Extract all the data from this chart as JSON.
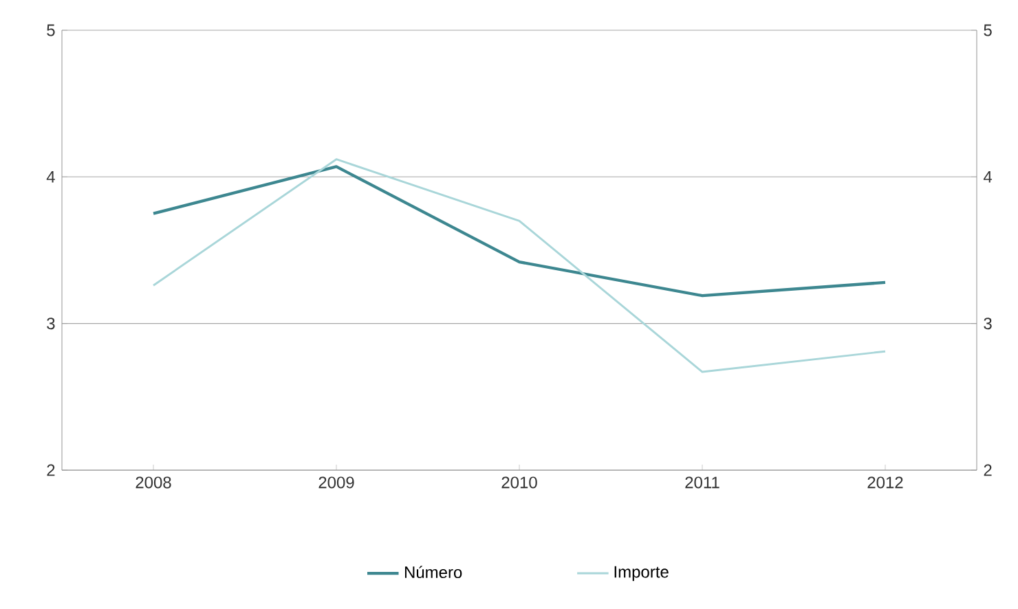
{
  "chart_data": {
    "type": "line",
    "categories": [
      "2008",
      "2009",
      "2010",
      "2011",
      "2012"
    ],
    "series": [
      {
        "name": "Número",
        "color": "#3d8790",
        "values": [
          3.75,
          4.07,
          3.42,
          3.19,
          3.28
        ]
      },
      {
        "name": "Importe",
        "color": "#a9d6d9",
        "values": [
          3.26,
          4.12,
          3.7,
          2.67,
          2.81
        ]
      }
    ],
    "ylim": [
      2,
      5
    ],
    "yticks": [
      2,
      3,
      4,
      5
    ],
    "y2lim": [
      2,
      5
    ],
    "y2ticks": [
      2,
      3,
      4,
      5
    ],
    "grid": "y",
    "legend": "bottom",
    "marker": "none",
    "line_style": "solid"
  }
}
